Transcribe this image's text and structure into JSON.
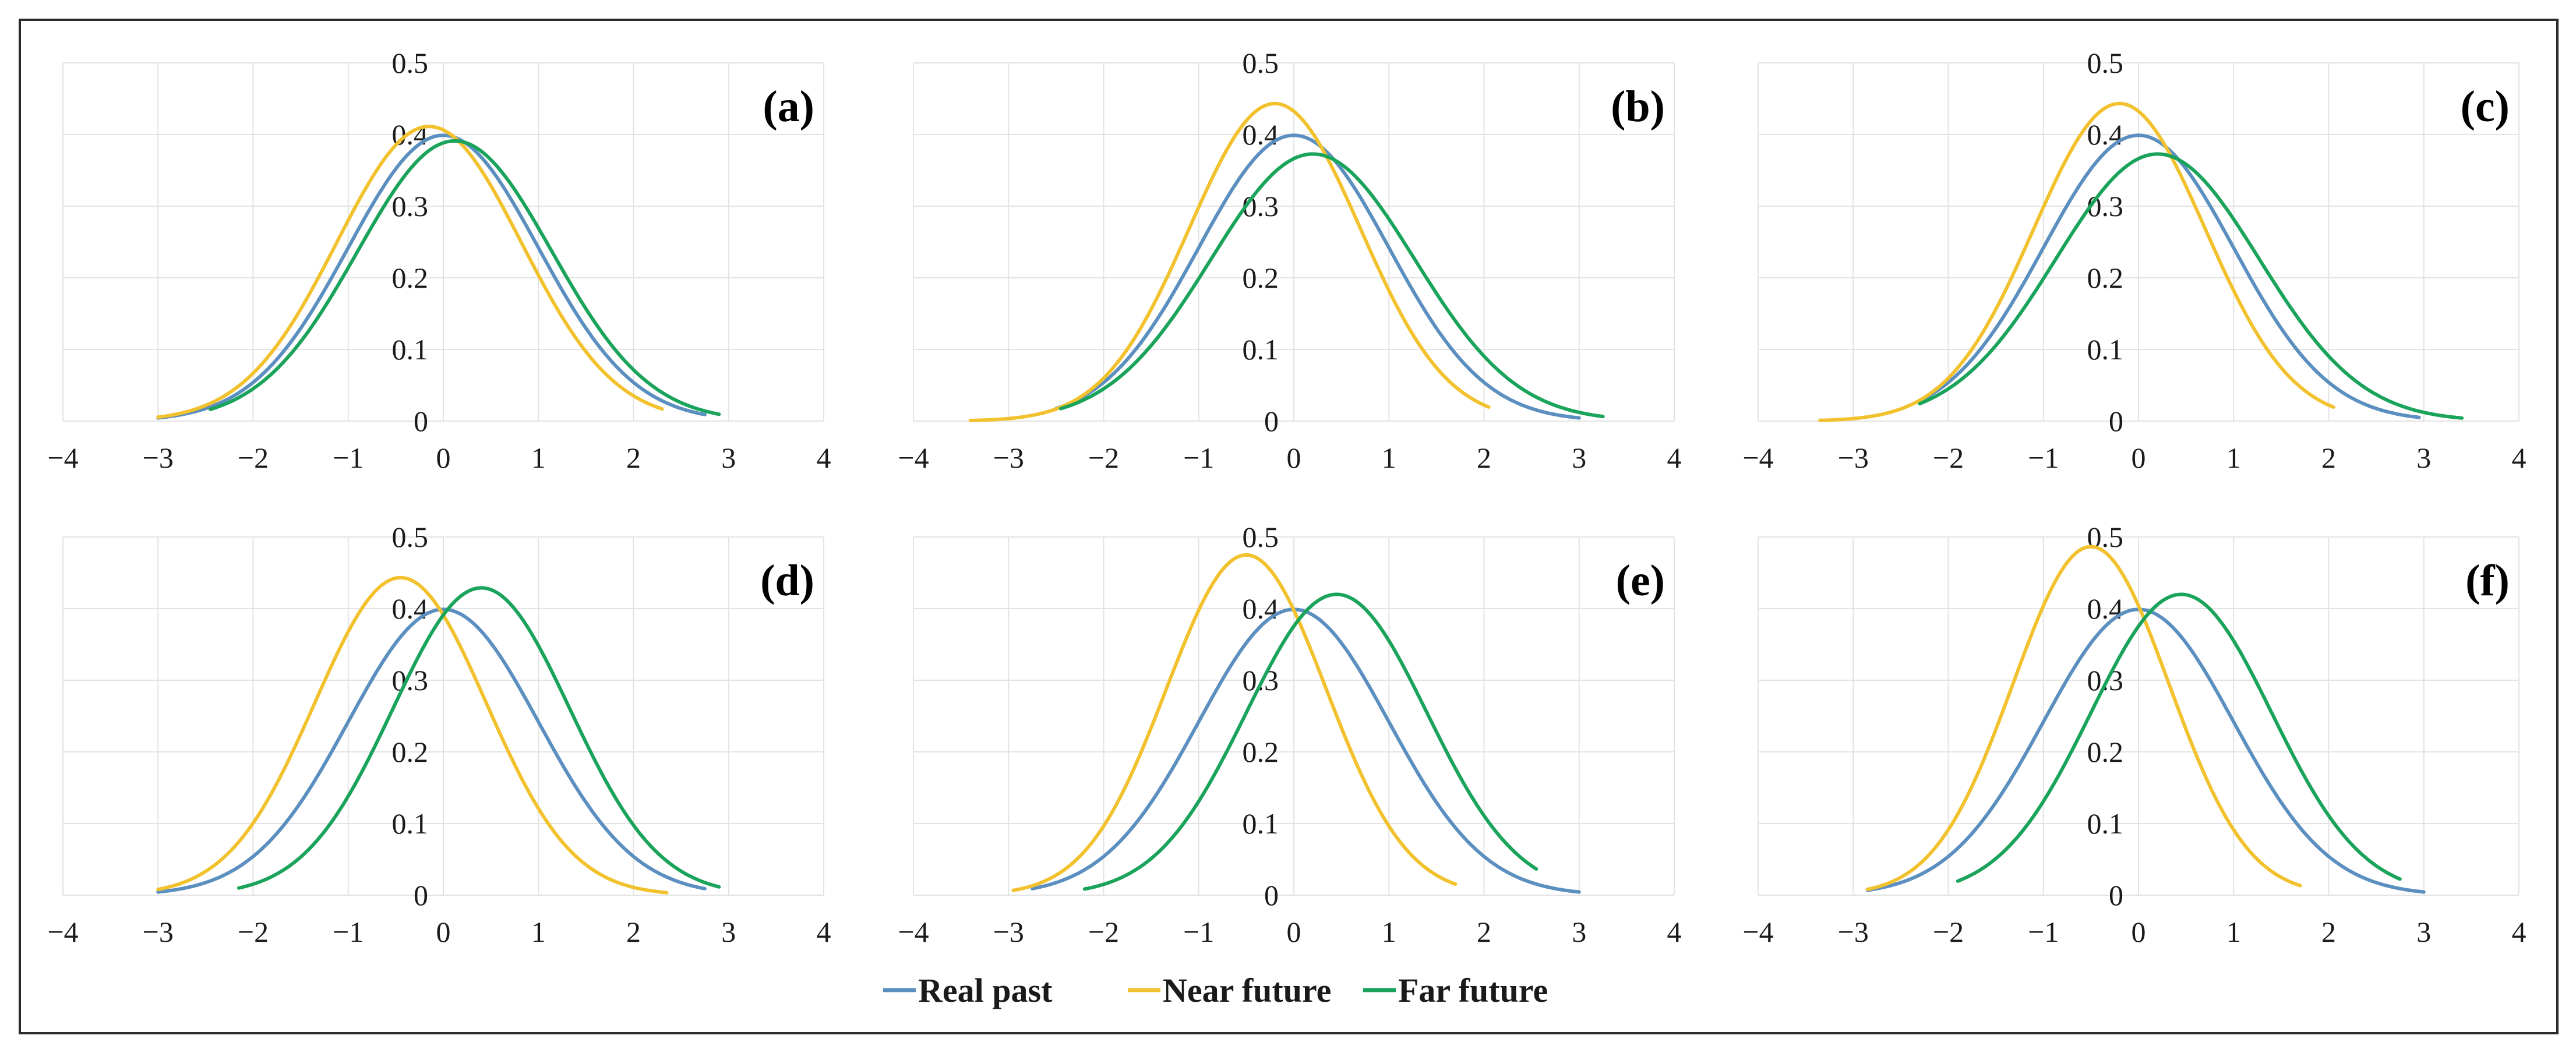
{
  "figure": {
    "legend": [
      {
        "name": "Real past",
        "color": "#5b8fbf"
      },
      {
        "name": "Near future",
        "color": "#f2c12e"
      },
      {
        "name": "Far future",
        "color": "#1aa35a"
      }
    ]
  },
  "chart_data": [
    {
      "type": "line",
      "panel": "(a)",
      "xlim": [
        -4,
        4
      ],
      "ylim": [
        0,
        0.5
      ],
      "xticks": [
        "−4",
        "−3",
        "−2",
        "−1",
        "0",
        "1",
        "2",
        "3",
        "4"
      ],
      "yticks": [
        "0",
        "0.1",
        "0.2",
        "0.3",
        "0.4",
        "0.5"
      ],
      "series": [
        {
          "name": "Real past",
          "color": "#5b8fbf",
          "mu": 0.0,
          "sigma": 1.0,
          "x_range": [
            -3.0,
            2.75
          ]
        },
        {
          "name": "Near future",
          "color": "#f2c12e",
          "mu": -0.15,
          "sigma": 0.97,
          "x_range": [
            -3.0,
            2.3
          ]
        },
        {
          "name": "Far future",
          "color": "#1aa35a",
          "mu": 0.12,
          "sigma": 1.02,
          "x_range": [
            -2.45,
            2.9
          ]
        }
      ]
    },
    {
      "type": "line",
      "panel": "(b)",
      "xlim": [
        -4,
        4
      ],
      "ylim": [
        0,
        0.5
      ],
      "xticks": [
        "−4",
        "−3",
        "−2",
        "−1",
        "0",
        "1",
        "2",
        "3",
        "4"
      ],
      "yticks": [
        "0",
        "0.1",
        "0.2",
        "0.3",
        "0.4",
        "0.5"
      ],
      "series": [
        {
          "name": "Real past",
          "color": "#5b8fbf",
          "mu": 0.0,
          "sigma": 1.0,
          "x_range": [
            -2.5,
            3.0
          ]
        },
        {
          "name": "Near future",
          "color": "#f2c12e",
          "mu": -0.2,
          "sigma": 0.9,
          "x_range": [
            -3.4,
            2.05
          ]
        },
        {
          "name": "Far future",
          "color": "#1aa35a",
          "mu": 0.2,
          "sigma": 1.07,
          "x_range": [
            -2.45,
            3.25
          ]
        }
      ]
    },
    {
      "type": "line",
      "panel": "(c)",
      "xlim": [
        -4,
        4
      ],
      "ylim": [
        0,
        0.5
      ],
      "xticks": [
        "−4",
        "−3",
        "−2",
        "−1",
        "0",
        "1",
        "2",
        "3",
        "4"
      ],
      "yticks": [
        "0",
        "0.1",
        "0.2",
        "0.3",
        "0.4",
        "0.5"
      ],
      "series": [
        {
          "name": "Real past",
          "color": "#5b8fbf",
          "mu": 0.0,
          "sigma": 1.0,
          "x_range": [
            -2.3,
            2.95
          ]
        },
        {
          "name": "Near future",
          "color": "#f2c12e",
          "mu": -0.2,
          "sigma": 0.9,
          "x_range": [
            -3.35,
            2.05
          ]
        },
        {
          "name": "Far future",
          "color": "#1aa35a",
          "mu": 0.2,
          "sigma": 1.07,
          "x_range": [
            -2.3,
            3.4
          ]
        }
      ]
    },
    {
      "type": "line",
      "panel": "(d)",
      "xlim": [
        -4,
        4
      ],
      "ylim": [
        0,
        0.5
      ],
      "xticks": [
        "−4",
        "−3",
        "−2",
        "−1",
        "0",
        "1",
        "2",
        "3",
        "4"
      ],
      "yticks": [
        "0",
        "0.1",
        "0.2",
        "0.3",
        "0.4",
        "0.5"
      ],
      "series": [
        {
          "name": "Real past",
          "color": "#5b8fbf",
          "mu": 0.0,
          "sigma": 1.0,
          "x_range": [
            -3.0,
            2.75
          ]
        },
        {
          "name": "Near future",
          "color": "#f2c12e",
          "mu": -0.45,
          "sigma": 0.9,
          "x_range": [
            -3.0,
            2.35
          ]
        },
        {
          "name": "Far future",
          "color": "#1aa35a",
          "mu": 0.4,
          "sigma": 0.93,
          "x_range": [
            -2.15,
            2.9
          ]
        }
      ]
    },
    {
      "type": "line",
      "panel": "(e)",
      "xlim": [
        -4,
        4
      ],
      "ylim": [
        0,
        0.5
      ],
      "xticks": [
        "−4",
        "−3",
        "−2",
        "−1",
        "0",
        "1",
        "2",
        "3",
        "4"
      ],
      "yticks": [
        "0",
        "0.1",
        "0.2",
        "0.3",
        "0.4",
        "0.5"
      ],
      "series": [
        {
          "name": "Real past",
          "color": "#5b8fbf",
          "mu": 0.0,
          "sigma": 1.0,
          "x_range": [
            -2.75,
            3.0
          ]
        },
        {
          "name": "Near future",
          "color": "#f2c12e",
          "mu": -0.5,
          "sigma": 0.84,
          "x_range": [
            -2.95,
            1.7
          ]
        },
        {
          "name": "Far future",
          "color": "#1aa35a",
          "mu": 0.45,
          "sigma": 0.95,
          "x_range": [
            -2.2,
            2.55
          ]
        }
      ]
    },
    {
      "type": "line",
      "panel": "(f)",
      "xlim": [
        -4,
        4
      ],
      "ylim": [
        0,
        0.5
      ],
      "xticks": [
        "−4",
        "−3",
        "−2",
        "−1",
        "0",
        "1",
        "2",
        "3",
        "4"
      ],
      "yticks": [
        "0",
        "0.1",
        "0.2",
        "0.3",
        "0.4",
        "0.5"
      ],
      "series": [
        {
          "name": "Real past",
          "color": "#5b8fbf",
          "mu": 0.0,
          "sigma": 1.0,
          "x_range": [
            -2.85,
            3.0
          ]
        },
        {
          "name": "Near future",
          "color": "#f2c12e",
          "mu": -0.5,
          "sigma": 0.82,
          "x_range": [
            -2.85,
            1.7
          ]
        },
        {
          "name": "Far future",
          "color": "#1aa35a",
          "mu": 0.45,
          "sigma": 0.95,
          "x_range": [
            -1.9,
            2.75
          ]
        }
      ]
    }
  ]
}
